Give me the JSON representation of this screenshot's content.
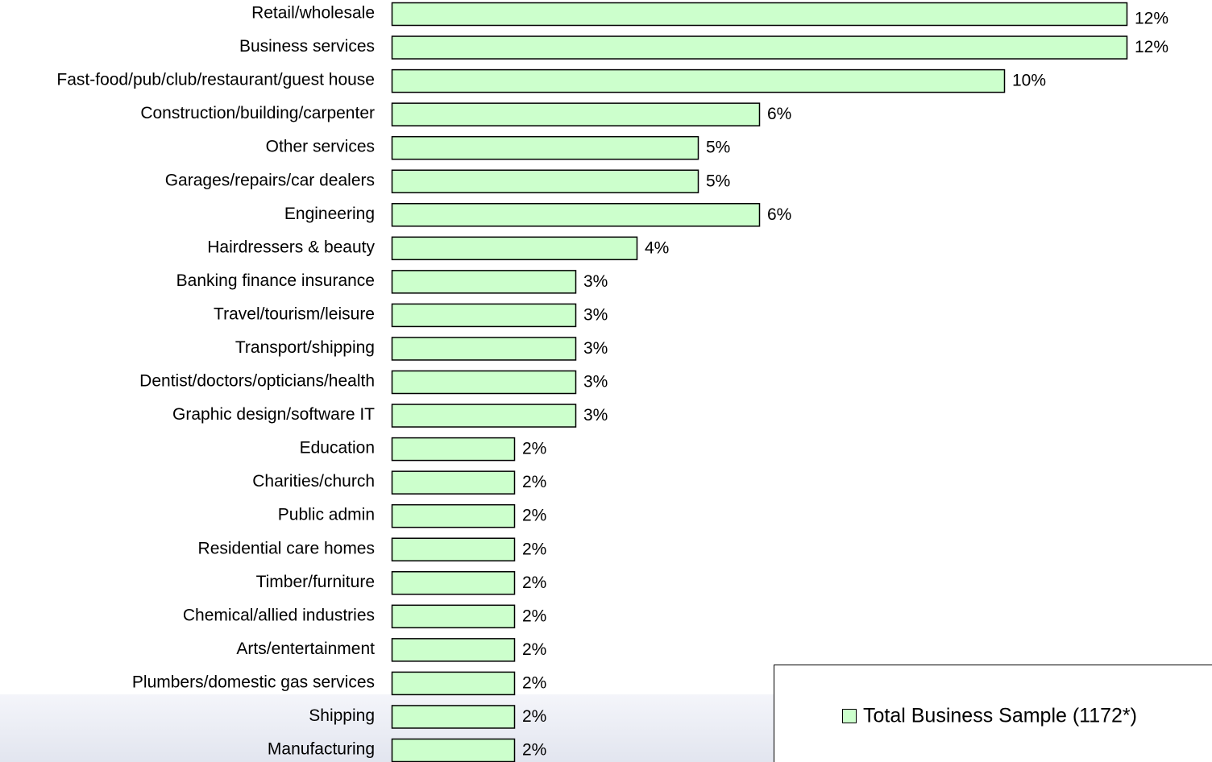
{
  "chart_data": {
    "type": "bar",
    "orientation": "horizontal",
    "categories": [
      "Retail/wholesale",
      "Business services",
      "Fast-food/pub/club/restaurant/guest house",
      "Construction/building/carpenter",
      "Other services",
      "Garages/repairs/car dealers",
      "Engineering",
      "Hairdressers & beauty",
      "Banking finance insurance",
      "Travel/tourism/leisure",
      "Transport/shipping",
      "Dentist/doctors/opticians/health",
      "Graphic design/software IT",
      "Education",
      "Charities/church",
      "Public admin",
      "Residential care homes",
      "Timber/furniture",
      "Chemical/allied industries",
      "Arts/entertainment",
      "Plumbers/domestic gas services",
      "Shipping",
      "Manufacturing"
    ],
    "series": [
      {
        "name": "Total Business Sample (1172*)",
        "color": "#ccffcc",
        "values": [
          12,
          12,
          10,
          6,
          5,
          5,
          6,
          4,
          3,
          3,
          3,
          3,
          3,
          2,
          2,
          2,
          2,
          2,
          2,
          2,
          2,
          2,
          2
        ],
        "value_labels": [
          "12%",
          "12%",
          "10%",
          "6%",
          "5%",
          "5%",
          "6%",
          "4%",
          "3%",
          "3%",
          "3%",
          "3%",
          "3%",
          "2%",
          "2%",
          "2%",
          "2%",
          "2%",
          "2%",
          "2%",
          "2%",
          "2%",
          "2%"
        ]
      }
    ],
    "legend": "bottom-right"
  }
}
